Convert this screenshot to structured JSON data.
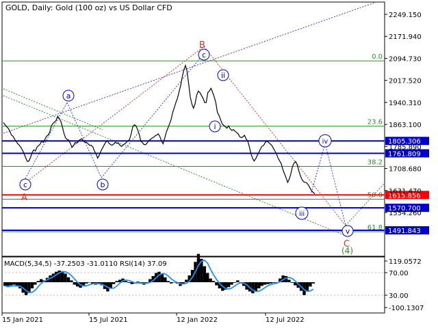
{
  "title": "GOLD, Daily:  Gold (100 oz) vs US Dollar CFD",
  "macd_label": "MACD(5,34,5) -37.2503 -31.0110 RSI(14) 37.09",
  "colors": {
    "price": "#000000",
    "horizontal_line": "#0000cc",
    "current_line": "#ff0000",
    "fib_line": "#2e8b2e",
    "wave_circle": "#0000cc",
    "wave_red": "#c0392b",
    "wave_green": "#2e8b2e",
    "trend_dotted": "#4b2fd1",
    "macd_blue": "#1e90ff",
    "price_tag_blue": "#0000cc",
    "price_tag_red": "#ff0000"
  },
  "chart_data": [
    {
      "type": "line",
      "title": "GOLD, Daily:  Gold (100 oz) vs US Dollar CFD",
      "x_tick_labels": [
        "15 Jan 2021",
        "15 Jul 2021",
        "12 Jan 2022",
        "12 Jul 2022"
      ],
      "y_tick_labels": [
        "2249.150",
        "2171.940",
        "2094.730",
        "2017.520",
        "1940.310",
        "1863.100",
        "1785.890",
        "1708.680",
        "1631.470",
        "1554.260"
      ],
      "ylim": [
        1445,
        2265
      ],
      "series": [
        {
          "values": [
            1870,
            1862,
            1855,
            1850,
            1840,
            1826,
            1822,
            1812,
            1803,
            1795,
            1790,
            1782,
            1772,
            1760,
            1745,
            1733,
            1735,
            1748,
            1765,
            1774,
            1770,
            1783,
            1789,
            1794,
            1805,
            1800,
            1811,
            1822,
            1826,
            1836,
            1858,
            1866,
            1872,
            1877,
            1892,
            1883,
            1873,
            1853,
            1830,
            1815,
            1810,
            1808,
            1795,
            1783,
            1790,
            1800,
            1798,
            1805,
            1810,
            1813,
            1806,
            1800,
            1800,
            1795,
            1790,
            1790,
            1784,
            1770,
            1760,
            1745,
            1755,
            1768,
            1780,
            1790,
            1800,
            1806,
            1798,
            1793,
            1790,
            1794,
            1800,
            1797,
            1798,
            1790,
            1786,
            1792,
            1795,
            1800,
            1806,
            1810,
            1830,
            1855,
            1862,
            1858,
            1845,
            1830,
            1805,
            1800,
            1793,
            1792,
            1798,
            1806,
            1810,
            1815,
            1818,
            1823,
            1826,
            1830,
            1820,
            1805,
            1795,
            1815,
            1836,
            1850,
            1865,
            1880,
            1905,
            1922,
            1940,
            1955,
            1978,
            2000,
            2030,
            2055,
            2070,
            2050,
            2005,
            1960,
            1935,
            1920,
            1935,
            1965,
            1980,
            1975,
            1965,
            1955,
            1940,
            1940,
            1975,
            1980,
            1990,
            1975,
            1960,
            1940,
            1905,
            1895,
            1880,
            1865,
            1860,
            1855,
            1850,
            1858,
            1848,
            1842,
            1845,
            1840,
            1835,
            1830,
            1820,
            1817,
            1820,
            1825,
            1812,
            1805,
            1785,
            1760,
            1745,
            1735,
            1743,
            1755,
            1765,
            1778,
            1787,
            1790,
            1800,
            1805,
            1800,
            1795,
            1790,
            1780,
            1770,
            1760,
            1745,
            1735,
            1725,
            1705,
            1690,
            1676,
            1660,
            1672,
            1690,
            1715,
            1728,
            1733,
            1722,
            1700,
            1683,
            1670,
            1662,
            1660,
            1658,
            1650,
            1640,
            1630,
            1625,
            1620
          ]
        }
      ],
      "annotations": [
        {
          "label": "c",
          "style": "blue-circle"
        },
        {
          "label": "b",
          "style": "blue-circle"
        },
        {
          "label": "a",
          "style": "blue-circle"
        },
        {
          "label": "c",
          "style": "blue-circle"
        },
        {
          "label": "ii",
          "style": "blue-circle"
        },
        {
          "label": "i",
          "style": "blue-circle"
        },
        {
          "label": "iii",
          "style": "blue-circle"
        },
        {
          "label": "iv",
          "style": "blue-circle"
        },
        {
          "label": "v",
          "style": "blue-circle"
        },
        {
          "label": "A",
          "style": "red-text"
        },
        {
          "label": "B",
          "style": "red-text"
        },
        {
          "label": "C",
          "style": "red-text"
        },
        {
          "label": "(4)",
          "style": "green-text"
        }
      ],
      "fib_levels": [
        {
          "label": "0.0",
          "price": 2086
        },
        {
          "label": "23.6",
          "price": 1857
        },
        {
          "label": "38.2",
          "price": 1716
        },
        {
          "label": "50.0",
          "price": 1601
        },
        {
          "label": "61.8",
          "price": 1487
        }
      ],
      "horizontal_levels": [
        {
          "value": 1805.306,
          "label": "1805.306",
          "color": "#0000cc"
        },
        {
          "value": 1761.809,
          "label": "1761.809",
          "color": "#0000cc"
        },
        {
          "value": 1615.856,
          "label": "1615.856",
          "color": "#ff0000"
        },
        {
          "value": 1570.7,
          "label": "1570.700",
          "color": "#0000cc"
        },
        {
          "value": 1491.843,
          "label": "1491.843",
          "color": "#0000cc"
        }
      ]
    },
    {
      "type": "bar",
      "title": "MACD(5,34,5) -37.2503 -31.0110 RSI(14) 37.09",
      "y_tick_labels": [
        "119.0572",
        "70.00",
        "30.00",
        "-100.1307"
      ],
      "values": [
        -12,
        -16,
        -10,
        -8,
        -14,
        -20,
        -34,
        -42,
        -35,
        -20,
        -8,
        4,
        10,
        6,
        14,
        22,
        28,
        34,
        38,
        36,
        28,
        16,
        6,
        -8,
        -14,
        -18,
        -10,
        -4,
        0,
        -6,
        -8,
        -4,
        -10,
        -22,
        -30,
        -18,
        -6,
        4,
        8,
        12,
        4,
        -2,
        -6,
        -4,
        2,
        -4,
        -8,
        -2,
        10,
        20,
        30,
        34,
        28,
        16,
        4,
        -4,
        0,
        -4,
        -12,
        -6,
        8,
        22,
        40,
        66,
        92,
        76,
        52,
        30,
        12,
        4,
        -10,
        -20,
        -28,
        -24,
        -16,
        -8,
        -2,
        6,
        -4,
        -12,
        -24,
        -30,
        -36,
        -30,
        -20,
        -12,
        -8,
        -6,
        -4,
        -2,
        0,
        12,
        22,
        20,
        8,
        -2,
        -10,
        -18,
        -28,
        -42,
        -30,
        -14,
        -4
      ]
    }
  ]
}
